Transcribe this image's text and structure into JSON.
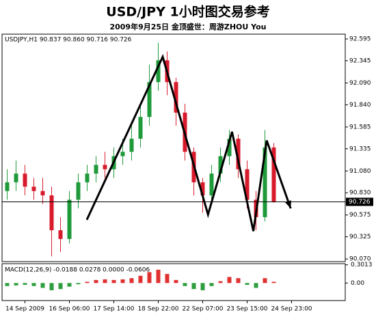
{
  "chart_data": {
    "type": "candlestick",
    "title": "USD/JPY  1小时图交易参考",
    "subtitle": "2009年9月25日  金顶盛世：周游ZHOU You",
    "info": "USDJPY,H1  90.837 90.860 90.716 90.726",
    "categories": [
      null,
      null,
      "14 Sep 2009",
      null,
      null,
      null,
      null,
      "16 Sep 06:00",
      null,
      null,
      null,
      null,
      "17 Sep 14:00",
      null,
      null,
      null,
      null,
      "18 Sep 22:00",
      null,
      null,
      null,
      null,
      "22 Sep 07:00",
      null,
      null,
      null,
      null,
      "23 Sep 15:00",
      null,
      null,
      null,
      null,
      "24 Sep 23:00",
      null,
      null,
      null,
      null,
      null
    ],
    "open": [
      90.85,
      90.95,
      91.05,
      90.9,
      90.85,
      90.8,
      90.4,
      90.3,
      90.75,
      90.95,
      91.05,
      91.15,
      91.1,
      91.25,
      91.3,
      91.45,
      91.7,
      92.1,
      92.35,
      92.1,
      91.75,
      91.3,
      90.95,
      90.8,
      91.05,
      91.25,
      91.45,
      91.1,
      90.75,
      90.55,
      91.35,
      null,
      null,
      null,
      null,
      null,
      null,
      null
    ],
    "high": [
      91.1,
      91.2,
      91.15,
      91.0,
      91.0,
      90.9,
      90.55,
      90.85,
      91.05,
      91.15,
      91.25,
      91.3,
      91.35,
      91.45,
      91.6,
      91.85,
      92.3,
      92.55,
      92.45,
      92.15,
      91.85,
      91.35,
      91.0,
      91.15,
      91.35,
      91.55,
      91.5,
      91.2,
      90.85,
      91.55,
      91.4,
      null,
      null,
      null,
      null,
      null,
      null,
      null
    ],
    "low": [
      90.75,
      90.85,
      90.8,
      90.75,
      90.7,
      90.1,
      90.15,
      90.25,
      90.65,
      90.85,
      90.95,
      91.0,
      91.0,
      91.15,
      91.2,
      91.35,
      91.6,
      92.0,
      91.95,
      91.6,
      91.2,
      90.8,
      90.6,
      90.7,
      90.95,
      91.15,
      91.0,
      90.65,
      90.4,
      90.5,
      90.716,
      null,
      null,
      null,
      null,
      null,
      null,
      null
    ],
    "close": [
      90.95,
      91.05,
      90.9,
      90.85,
      90.8,
      90.4,
      90.3,
      90.75,
      90.95,
      91.05,
      91.15,
      91.1,
      91.25,
      91.3,
      91.45,
      91.7,
      92.1,
      92.35,
      92.1,
      91.75,
      91.3,
      90.95,
      90.8,
      91.05,
      91.25,
      91.45,
      91.1,
      90.75,
      90.55,
      91.35,
      90.726,
      null,
      null,
      null,
      null,
      null,
      null,
      null
    ],
    "up_color": "#1f9a3a",
    "down_color": "#d81b2c",
    "ylim": [
      90.04,
      92.65
    ],
    "yticks": [
      92.595,
      92.345,
      {
        "value": 92.09,
        "label": "92.090"
      },
      {
        "value": 91.84,
        "label": "91.840"
      },
      91.585,
      91.335,
      {
        "value": 91.08,
        "label": "91.080"
      },
      {
        "value": 90.83,
        "label": "90.830"
      },
      90.575,
      90.325,
      {
        "value": 90.07,
        "label": "90.070"
      }
    ],
    "current_price": 90.726,
    "zigzag": {
      "color": "#000000",
      "x": [
        8.96,
        17.5,
        22.6,
        25.3,
        27.7,
        29.2,
        31.9
      ],
      "values": [
        90.52,
        92.39,
        90.58,
        91.53,
        90.39,
        91.43,
        90.65
      ]
    },
    "macd": {
      "label": "MACD(12,26,9) -0.0188 0.0278 0.0000 -0.0606",
      "values": [
        -0.05,
        -0.04,
        -0.03,
        -0.05,
        -0.08,
        -0.12,
        -0.1,
        -0.06,
        -0.02,
        0.02,
        0.05,
        0.06,
        0.05,
        0.06,
        0.08,
        0.12,
        0.18,
        0.22,
        0.15,
        0.05,
        -0.05,
        -0.1,
        -0.12,
        -0.05,
        0.03,
        0.1,
        0.08,
        -0.03,
        -0.08,
        0.08,
        0.02,
        null,
        null,
        null,
        null,
        null,
        null,
        null
      ],
      "pos_color": "#e03030",
      "neg_color": "#2e9e3e",
      "ylim": [
        -0.29,
        0.32
      ],
      "yticks": [
        0.3013,
        {
          "value": 0,
          "label": "0.00"
        }
      ]
    }
  }
}
